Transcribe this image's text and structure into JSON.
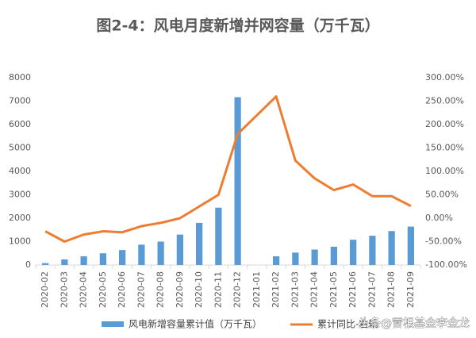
{
  "chart_data": {
    "type": "bar-line",
    "title": "图2-4：风电月度新增并网容量（万千瓦）",
    "categories": [
      "2020-02",
      "2020-03",
      "2020-04",
      "2020-05",
      "2020-06",
      "2020-07",
      "2020-08",
      "2020-09",
      "2020-10",
      "2020-11",
      "2020-12",
      "2021-01",
      "2021-02",
      "2021-03",
      "2021-04",
      "2021-05",
      "2021-06",
      "2021-07",
      "2021-08",
      "2021-09"
    ],
    "series": [
      {
        "name": "风电新增容量累计值（万千瓦）",
        "type": "bar",
        "color": "#5b9bd5",
        "values": [
          80,
          240,
          370,
          500,
          640,
          870,
          1000,
          1300,
          1800,
          2450,
          7170,
          null,
          370,
          530,
          660,
          780,
          1080,
          1250,
          1450,
          1640
        ]
      },
      {
        "name": "累计同比-右轴",
        "type": "line",
        "axis": "y2",
        "color": "#ed7d31",
        "values": [
          -28,
          -50,
          -35,
          -28,
          -30,
          -17,
          -10,
          0,
          25,
          50,
          180,
          220,
          260,
          123,
          85,
          60,
          72,
          47,
          47,
          26
        ]
      }
    ],
    "ylim": [
      0,
      8000
    ],
    "yticks": [
      0,
      1000,
      2000,
      3000,
      4000,
      5000,
      6000,
      7000,
      8000
    ],
    "y2lim": [
      -100,
      300
    ],
    "y2ticks": [
      {
        "value": -100,
        "label": "-100.00%"
      },
      {
        "value": -50,
        "label": "-50.00%"
      },
      {
        "value": 0,
        "label": "0.00%"
      },
      {
        "value": 50,
        "label": "50.00%"
      },
      {
        "value": 100,
        "label": "100.00%"
      },
      {
        "value": 150,
        "label": "150.00%"
      },
      {
        "value": 200,
        "label": "200.00%"
      },
      {
        "value": 250,
        "label": "250.00%"
      },
      {
        "value": 300,
        "label": "300.00%"
      }
    ],
    "annotation": "头条@雷根基金李金龙"
  }
}
